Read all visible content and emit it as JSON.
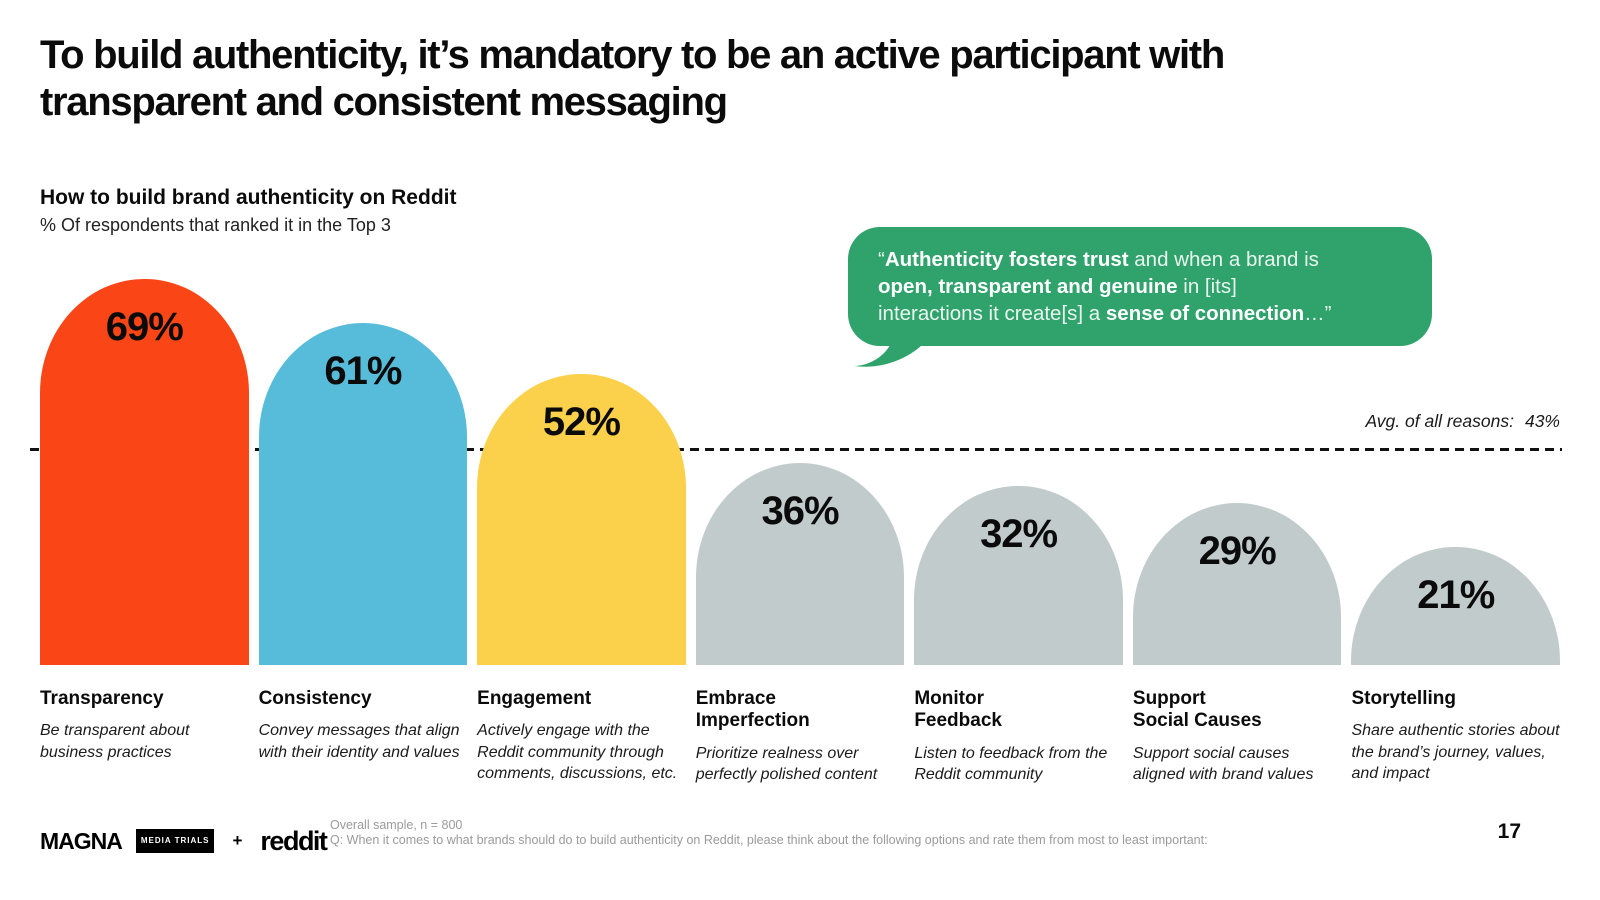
{
  "slide": {
    "title": "To build authenticity, it’s mandatory to be an active participant with transparent and consistent messaging",
    "chart_heading": "How to build brand authenticity on Reddit",
    "chart_subheading": "% Of respondents that ranked it in the Top 3",
    "avg_label": "Avg. of all reasons:",
    "avg_value": "43%",
    "page_number": "17",
    "footnote_line1": "Overall sample, n = 800",
    "footnote_line2": "Q: When it comes to what brands should do to build authenticity on Reddit, please think about the following options and rate them from most to least important:",
    "logos": {
      "magna": "MAGNA",
      "magna_badge": "MEDIA TRIALS",
      "plus": "+",
      "reddit": "reddit"
    }
  },
  "quote": {
    "open": "“",
    "bold1": "Authenticity fosters trust",
    "text1": " and when a brand is",
    "bold2": "open, transparent and genuine",
    "text2": " in [its]",
    "text3": "interactions it create[s] a ",
    "bold3": "sense of connection",
    "close": "…”"
  },
  "chart_data": {
    "type": "bar",
    "title": "How to build brand authenticity on Reddit",
    "subtitle": "% Of respondents that ranked it in the Top 3",
    "unit": "%",
    "ylim": [
      0,
      100
    ],
    "grid": false,
    "avg_of_all_reasons": 43,
    "categories": [
      "Transparency",
      "Consistency",
      "Engagement",
      "Embrace Imperfection",
      "Monitor Feedback",
      "Support Social Causes",
      "Storytelling"
    ],
    "values": [
      69,
      61,
      52,
      36,
      32,
      29,
      21
    ],
    "bars": [
      {
        "label": "Transparency",
        "value": 69,
        "value_label": "69%",
        "color": "#FA4616",
        "description": "Be transparent about business practices"
      },
      {
        "label": "Consistency",
        "value": 61,
        "value_label": "61%",
        "color": "#56BCD9",
        "description": "Convey messages that align with their identity and values"
      },
      {
        "label": "Engagement",
        "value": 52,
        "value_label": "52%",
        "color": "#FBD14B",
        "description": "Actively engage with the Reddit community through comments, discussions, etc."
      },
      {
        "label": "Embrace\nImperfection",
        "value": 36,
        "value_label": "36%",
        "color": "#C2CBCB",
        "description": "Prioritize realness over perfectly polished content"
      },
      {
        "label": "Monitor\nFeedback",
        "value": 32,
        "value_label": "32%",
        "color": "#C2CBCB",
        "description": "Listen to feedback from the Reddit community"
      },
      {
        "label": "Support\nSocial Causes",
        "value": 29,
        "value_label": "29%",
        "color": "#C2CBCB",
        "description": "Support social causes aligned with brand values"
      },
      {
        "label": "Storytelling",
        "value": 21,
        "value_label": "21%",
        "color": "#C2CBCB",
        "description": "Share authentic stories about the brand’s journey, values, and impact"
      }
    ]
  }
}
